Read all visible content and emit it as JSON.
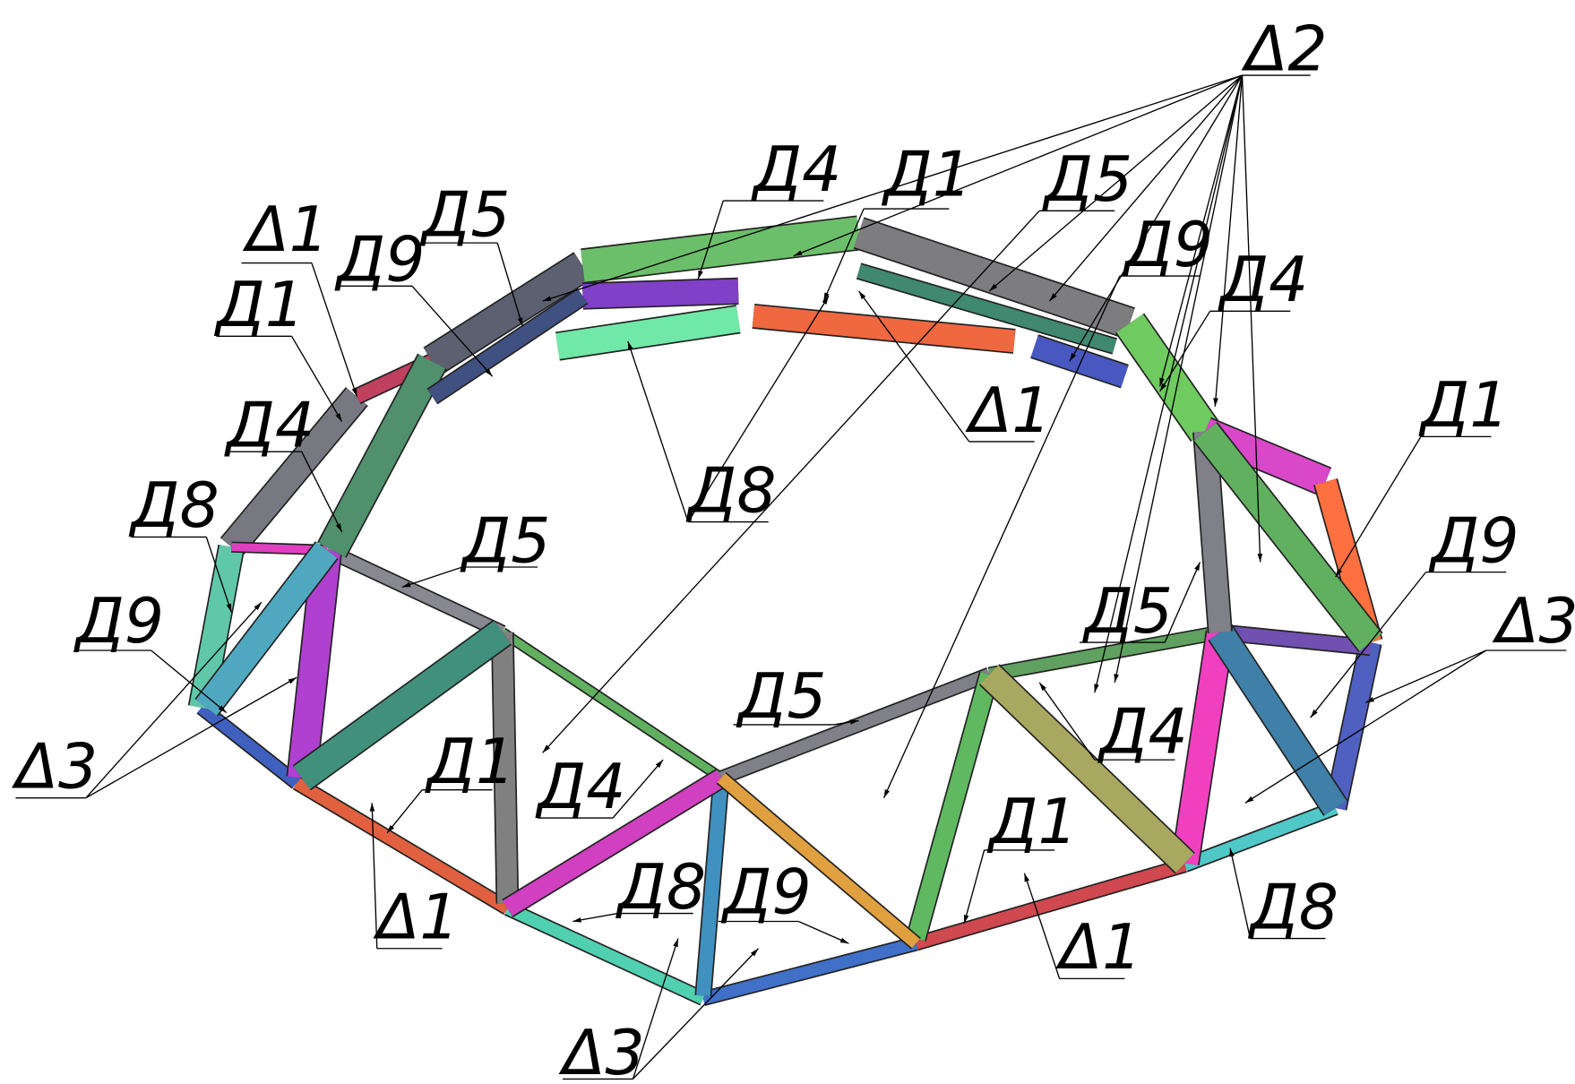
{
  "labels": [
    "Δ2",
    "Д4",
    "Д1",
    "Д5",
    "Д9",
    "Д4",
    "Δ1",
    "Д9",
    "Д5",
    "Д1",
    "Δ1",
    "Д4",
    "Д8",
    "Д1",
    "Д8",
    "Д5",
    "Д9",
    "Д5",
    "Δ3",
    "Д9",
    "Д5",
    "Д4",
    "Δ3",
    "Д1",
    "Д4",
    "Д1",
    "Д8",
    "Д9",
    "Δ1",
    "Д8",
    "Δ1",
    "Δ3"
  ]
}
